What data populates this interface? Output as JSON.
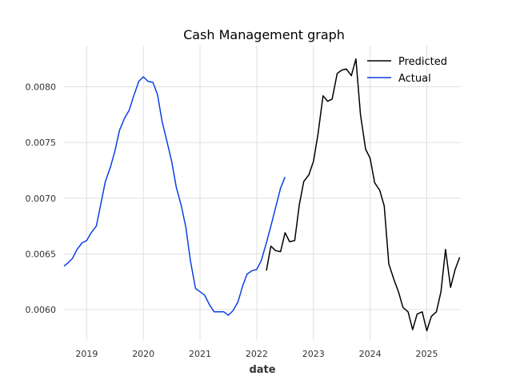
{
  "chart_data": {
    "type": "line",
    "title": "Cash Management graph",
    "xlabel": "date",
    "ylabel": "",
    "xlim": [
      2018.6,
      2025.6
    ],
    "ylim": [
      0.00572,
      0.00837
    ],
    "x_ticks": [
      2019,
      2020,
      2021,
      2022,
      2023,
      2024,
      2025
    ],
    "x_tick_labels": [
      "2019",
      "2020",
      "2021",
      "2022",
      "2023",
      "2024",
      "2025"
    ],
    "y_ticks": [
      0.006,
      0.0065,
      0.007,
      0.0075,
      0.008
    ],
    "y_tick_labels": [
      "0.0060",
      "0.0065",
      "0.0070",
      "0.0075",
      "0.0080"
    ],
    "grid": true,
    "legend_position": "top-right",
    "series": [
      {
        "name": "Predicted",
        "color": "#000000",
        "x": [
          2022.17,
          2022.25,
          2022.33,
          2022.42,
          2022.5,
          2022.58,
          2022.67,
          2022.75,
          2022.83,
          2022.92,
          2023.0,
          2023.08,
          2023.17,
          2023.25,
          2023.33,
          2023.42,
          2023.5,
          2023.58,
          2023.67,
          2023.75,
          2023.83,
          2023.92,
          2024.0,
          2024.08,
          2024.17,
          2024.25,
          2024.33,
          2024.42,
          2024.5,
          2024.58,
          2024.67,
          2024.75,
          2024.83,
          2024.92,
          2025.0,
          2025.08,
          2025.17,
          2025.25,
          2025.33,
          2025.42,
          2025.5,
          2025.58
        ],
        "values": [
          0.00635,
          0.00657,
          0.00653,
          0.00652,
          0.00669,
          0.00661,
          0.00662,
          0.00694,
          0.00715,
          0.00721,
          0.00733,
          0.00757,
          0.00792,
          0.00787,
          0.00789,
          0.00812,
          0.00815,
          0.00816,
          0.0081,
          0.00825,
          0.00775,
          0.00744,
          0.00736,
          0.00714,
          0.00707,
          0.00693,
          0.00641,
          0.00627,
          0.00616,
          0.00602,
          0.00598,
          0.00582,
          0.00596,
          0.00598,
          0.00581,
          0.00594,
          0.00598,
          0.00616,
          0.00654,
          0.0062,
          0.00636,
          0.00647
        ]
      },
      {
        "name": "Actual",
        "color": "#0b3fe6",
        "x": [
          2018.6,
          2018.67,
          2018.75,
          2018.83,
          2018.92,
          2019.0,
          2019.08,
          2019.17,
          2019.25,
          2019.33,
          2019.42,
          2019.5,
          2019.58,
          2019.67,
          2019.75,
          2019.83,
          2019.92,
          2020.0,
          2020.08,
          2020.17,
          2020.25,
          2020.33,
          2020.42,
          2020.5,
          2020.58,
          2020.67,
          2020.75,
          2020.83,
          2020.92,
          2021.0,
          2021.08,
          2021.17,
          2021.25,
          2021.33,
          2021.42,
          2021.5,
          2021.58,
          2021.67,
          2021.75,
          2021.83,
          2021.92,
          2022.0,
          2022.08,
          2022.17,
          2022.25,
          2022.33,
          2022.42,
          2022.5
        ],
        "values": [
          0.00639,
          0.00642,
          0.00646,
          0.00654,
          0.0066,
          0.00662,
          0.00669,
          0.00675,
          0.00695,
          0.00715,
          0.00728,
          0.00743,
          0.00761,
          0.00772,
          0.00779,
          0.00792,
          0.00805,
          0.00809,
          0.00805,
          0.00804,
          0.00793,
          0.00769,
          0.0075,
          0.00733,
          0.0071,
          0.00693,
          0.00674,
          0.00644,
          0.00619,
          0.00616,
          0.00613,
          0.00604,
          0.00598,
          0.00598,
          0.00598,
          0.00595,
          0.00599,
          0.00607,
          0.00621,
          0.00632,
          0.00635,
          0.00636,
          0.00644,
          0.0066,
          0.00675,
          0.00691,
          0.00709,
          0.00719
        ]
      }
    ]
  }
}
